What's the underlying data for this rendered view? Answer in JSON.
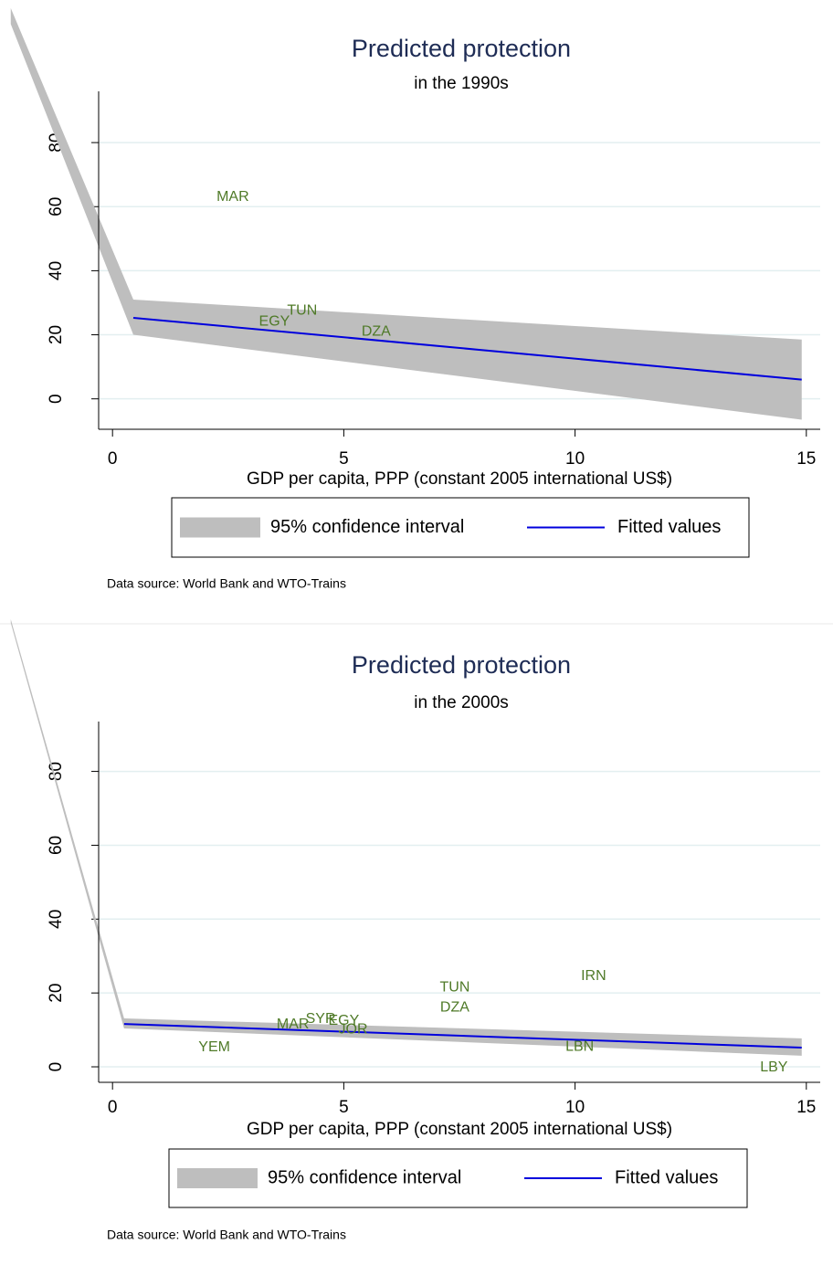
{
  "chart_data": [
    {
      "type": "line",
      "title": "Predicted protection",
      "subtitle": "in the 1990s",
      "x_label": "GDP per capita, PPP (constant 2005 international US$)",
      "note": "Data source: World Bank and WTO-Trains",
      "xlim": [
        -0.3,
        15.3
      ],
      "ylim": [
        -9.5,
        96
      ],
      "xticks": [
        0,
        5,
        10,
        15
      ],
      "yticks": [
        0,
        20,
        40,
        60,
        80
      ],
      "grid": true,
      "series": [
        {
          "name": "95% confidence interval",
          "kind": "area",
          "color": "#bebebe",
          "x": [
            -2.2,
            0.45,
            14.9
          ],
          "upper": [
            122,
            31,
            18.5
          ],
          "lower": [
            117,
            20,
            -6.5
          ]
        },
        {
          "name": "Fitted values",
          "kind": "line",
          "color": "#0000dd",
          "x": [
            0.45,
            14.9
          ],
          "values": [
            25.3,
            6
          ]
        }
      ],
      "points": {
        "color": "#4f7a28",
        "labels": [
          "MAR",
          "TUN",
          "EGY",
          "DZA"
        ],
        "x": [
          2.6,
          4.1,
          3.5,
          5.7
        ],
        "values": [
          63,
          27.5,
          24,
          21
        ]
      }
    },
    {
      "type": "line",
      "title": "Predicted protection",
      "subtitle": "in the 2000s",
      "x_label": "GDP per capita, PPP (constant 2005 international US$)",
      "note": "Data source: World Bank and WTO-Trains",
      "xlim": [
        -0.3,
        15.3
      ],
      "ylim": [
        -4.2,
        93.5
      ],
      "xticks": [
        0,
        5,
        10,
        15
      ],
      "yticks": [
        0,
        20,
        40,
        60,
        80
      ],
      "grid": true,
      "series": [
        {
          "name": "95% confidence interval",
          "kind": "area",
          "color": "#bebebe",
          "x": [
            -2.2,
            0.25,
            14.9
          ],
          "upper": [
            121.2,
            13.1,
            7.7
          ],
          "lower": [
            120.2,
            10.4,
            3
          ]
        },
        {
          "name": "Fitted values",
          "kind": "line",
          "color": "#0000dd",
          "x": [
            0.25,
            14.9
          ],
          "values": [
            11.6,
            5.2
          ]
        }
      ],
      "points": {
        "color": "#4f7a28",
        "labels": [
          "YEM",
          "MAR",
          "SYR",
          "EGY",
          "JOR",
          "TUN",
          "DZA",
          "IRN",
          "LBN",
          "LBY"
        ],
        "x": [
          2.2,
          3.9,
          4.5,
          5.0,
          5.2,
          7.4,
          7.4,
          10.4,
          10.1,
          14.3
        ],
        "values": [
          5.2,
          11.4,
          12.9,
          12.4,
          10.1,
          21.5,
          16,
          24.5,
          5.4,
          -0.2
        ]
      }
    }
  ]
}
